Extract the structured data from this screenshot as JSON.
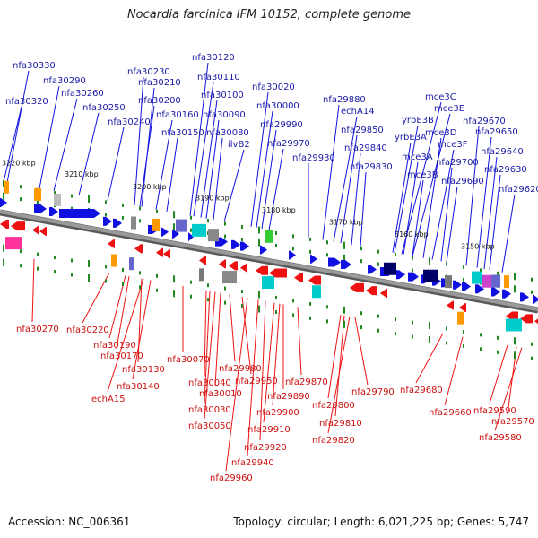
{
  "title": "Nocardia farcinica IFM 10152, complete genome",
  "footer": {
    "accession": "Accession: NC_006361",
    "topology": "Topology: circular; Length: 6,021,225 bp; Genes: 5,747"
  },
  "colors": {
    "forward": "#1010e0",
    "reverse": "#ee1111",
    "backbone": "#8a8a8a",
    "tick": "#228822"
  },
  "kbp_labels": [
    "3220 kbp",
    "3210 kbp",
    "3200 kbp",
    "3190 kbp",
    "3180 kbp",
    "3170 kbp",
    "3160 kbp",
    "3150 kbp"
  ],
  "top_labels": [
    "nfa30330",
    "nfa30320",
    "nfa30290",
    "nfa30260",
    "nfa30250",
    "nfa30240",
    "nfa30230",
    "nfa30210",
    "nfa30200",
    "nfa30160",
    "nfa30150",
    "nfa30120",
    "nfa30110",
    "nfa30100",
    "nfa30090",
    "nfa30080",
    "ilvB2",
    "nfa30020",
    "nfa30000",
    "nfa29990",
    "nfa29970",
    "nfa29930",
    "nfa29880",
    "echA14",
    "nfa29850",
    "nfa29840",
    "nfa29830",
    "yrbE3B",
    "yrbE3A",
    "mce3C",
    "mce3E",
    "mce3D",
    "mce3F",
    "mce3A",
    "mce3B",
    "nfa29700",
    "nfa29690",
    "nfa29670",
    "nfa29650",
    "nfa29640",
    "nfa29630",
    "nfa29620"
  ],
  "bottom_labels": [
    "nfa30270",
    "nfa30220",
    "nfa30190",
    "nfa30170",
    "nfa30130",
    "echA15",
    "nfa30140",
    "nfa30070",
    "nfa30040",
    "nfa30030",
    "nfa30050",
    "nfa30010",
    "nfa29980",
    "nfa29950",
    "nfa29960",
    "nfa29940",
    "nfa29920",
    "nfa29910",
    "nfa29900",
    "nfa29890",
    "nfa29870",
    "nfa29800",
    "nfa29810",
    "nfa29820",
    "nfa29790",
    "nfa29680",
    "nfa29660",
    "nfa29590",
    "nfa29570",
    "nfa29580"
  ]
}
